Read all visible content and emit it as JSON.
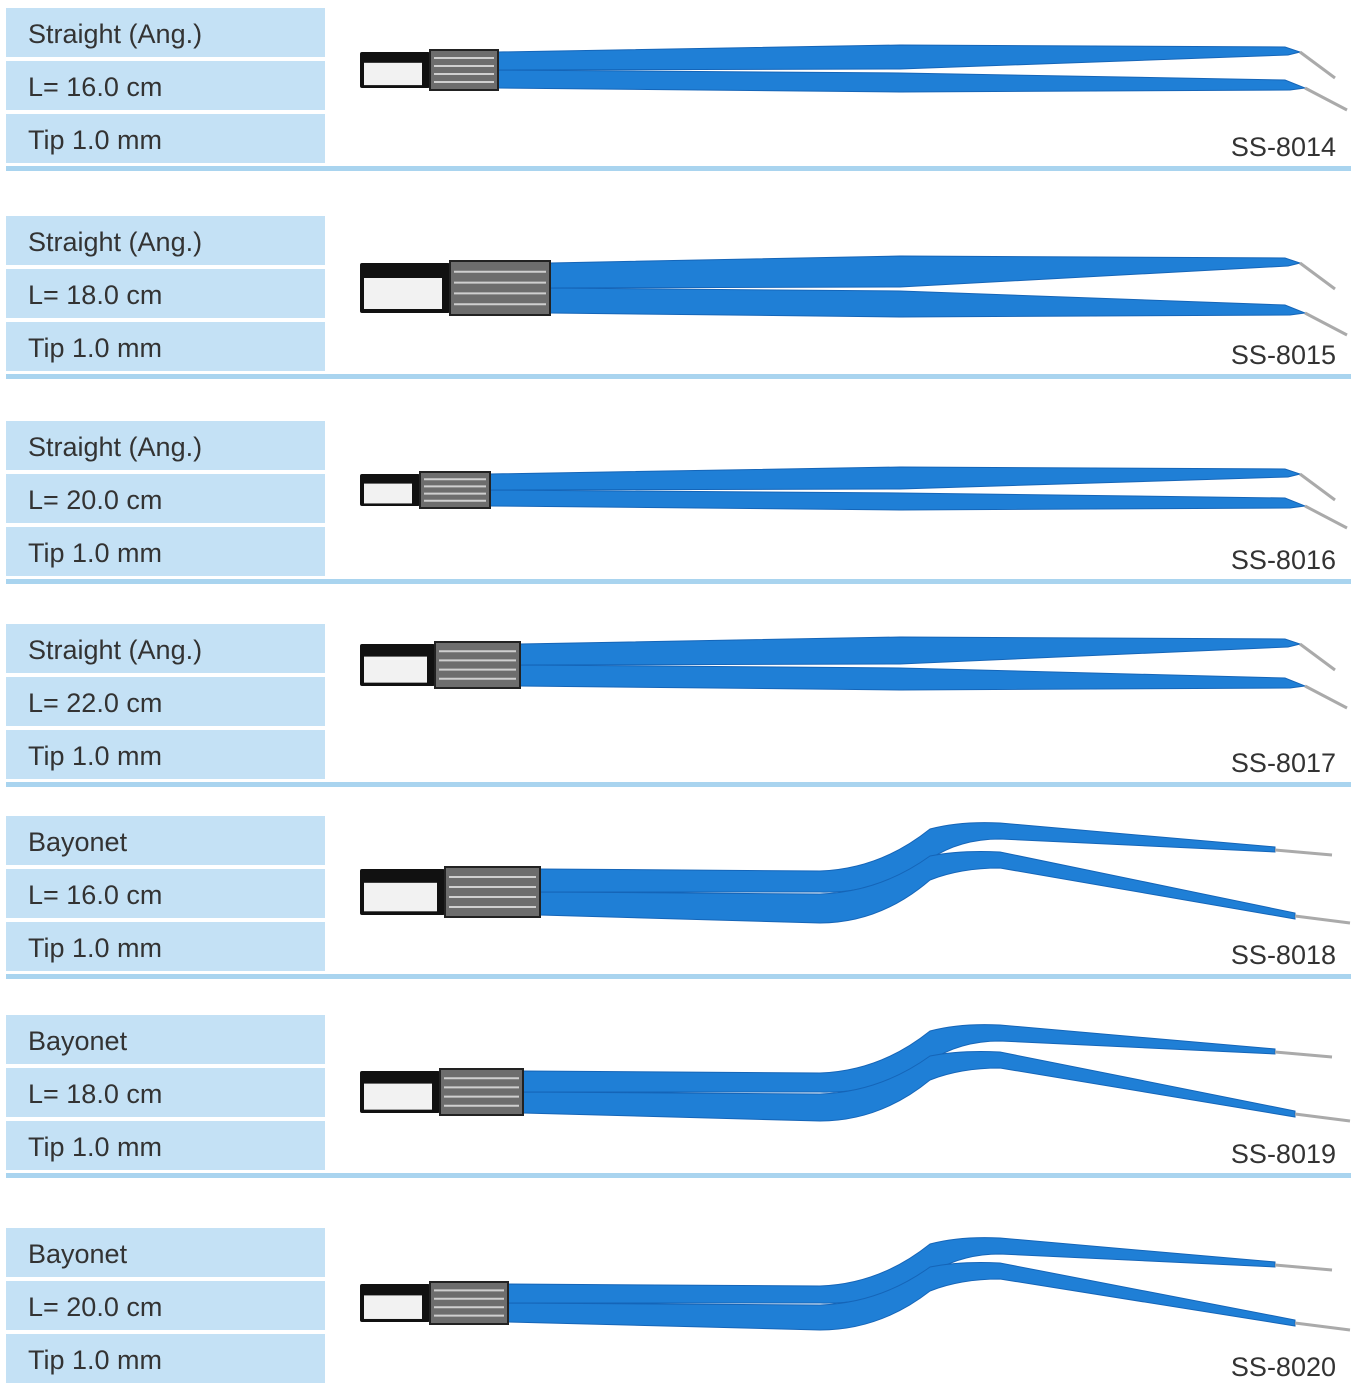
{
  "products": [
    {
      "type": "Straight (Ang.)",
      "length": "L= 16.0 cm",
      "tip": "Tip 1.0 mm",
      "code": "SS-8014"
    },
    {
      "type": "Straight (Ang.)",
      "length": "L= 18.0 cm",
      "tip": "Tip 1.0 mm",
      "code": "SS-8015"
    },
    {
      "type": "Straight (Ang.)",
      "length": "L= 20.0 cm",
      "tip": "Tip 1.0 mm",
      "code": "SS-8016"
    },
    {
      "type": "Straight (Ang.)",
      "length": "L= 22.0 cm",
      "tip": "Tip 1.0 mm",
      "code": "SS-8017"
    },
    {
      "type": "Bayonet",
      "length": "L= 16.0 cm",
      "tip": "Tip 1.0 mm",
      "code": "SS-8018"
    },
    {
      "type": "Bayonet",
      "length": "L= 18.0 cm",
      "tip": "Tip 1.0 mm",
      "code": "SS-8019"
    },
    {
      "type": "Bayonet",
      "length": "L= 20.0 cm",
      "tip": "Tip 1.0 mm",
      "code": "SS-8020"
    }
  ]
}
